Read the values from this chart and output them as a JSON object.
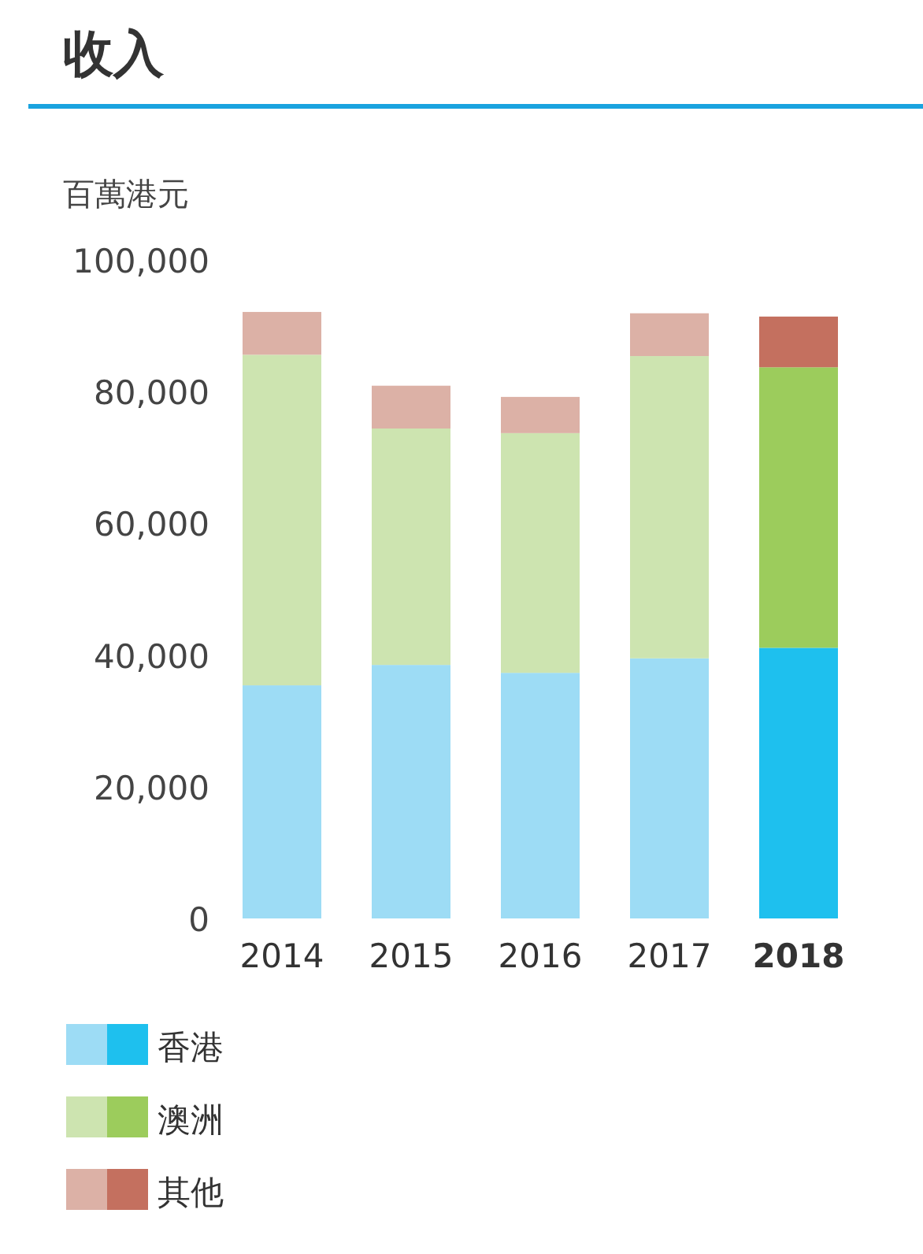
{
  "chart_data": {
    "type": "bar",
    "title": "收入",
    "ylabel": "百萬港元",
    "stacked": true,
    "legend": "bottom",
    "categories": [
      "2014",
      "2015",
      "2016",
      "2017",
      "2018"
    ],
    "ylim": [
      0,
      100000
    ],
    "yticks": [
      {
        "value": 0,
        "label": "0"
      },
      {
        "value": 20000,
        "label": "20,000"
      },
      {
        "value": 40000,
        "label": "40,000"
      },
      {
        "value": 60000,
        "label": "60,000"
      },
      {
        "value": 80000,
        "label": "80,000"
      },
      {
        "value": 100000,
        "label": "100,000"
      }
    ],
    "series": [
      {
        "name": "香港",
        "colors": [
          "#9ddcf5",
          "#9ddcf5",
          "#9ddcf5",
          "#9ddcf5",
          "#1ec0ee"
        ],
        "values": [
          35400,
          38500,
          37300,
          39500,
          41100
        ]
      },
      {
        "name": "澳洲",
        "colors": [
          "#cde4b0",
          "#cde4b0",
          "#cde4b0",
          "#cde4b0",
          "#9ccc5c"
        ],
        "values": [
          50200,
          35900,
          36400,
          45900,
          42600
        ]
      },
      {
        "name": "其他",
        "colors": [
          "#dcb1a6",
          "#dcb1a6",
          "#dcb1a6",
          "#dcb1a6",
          "#c4705f"
        ],
        "values": [
          6500,
          6500,
          5500,
          6500,
          7700
        ]
      }
    ]
  }
}
